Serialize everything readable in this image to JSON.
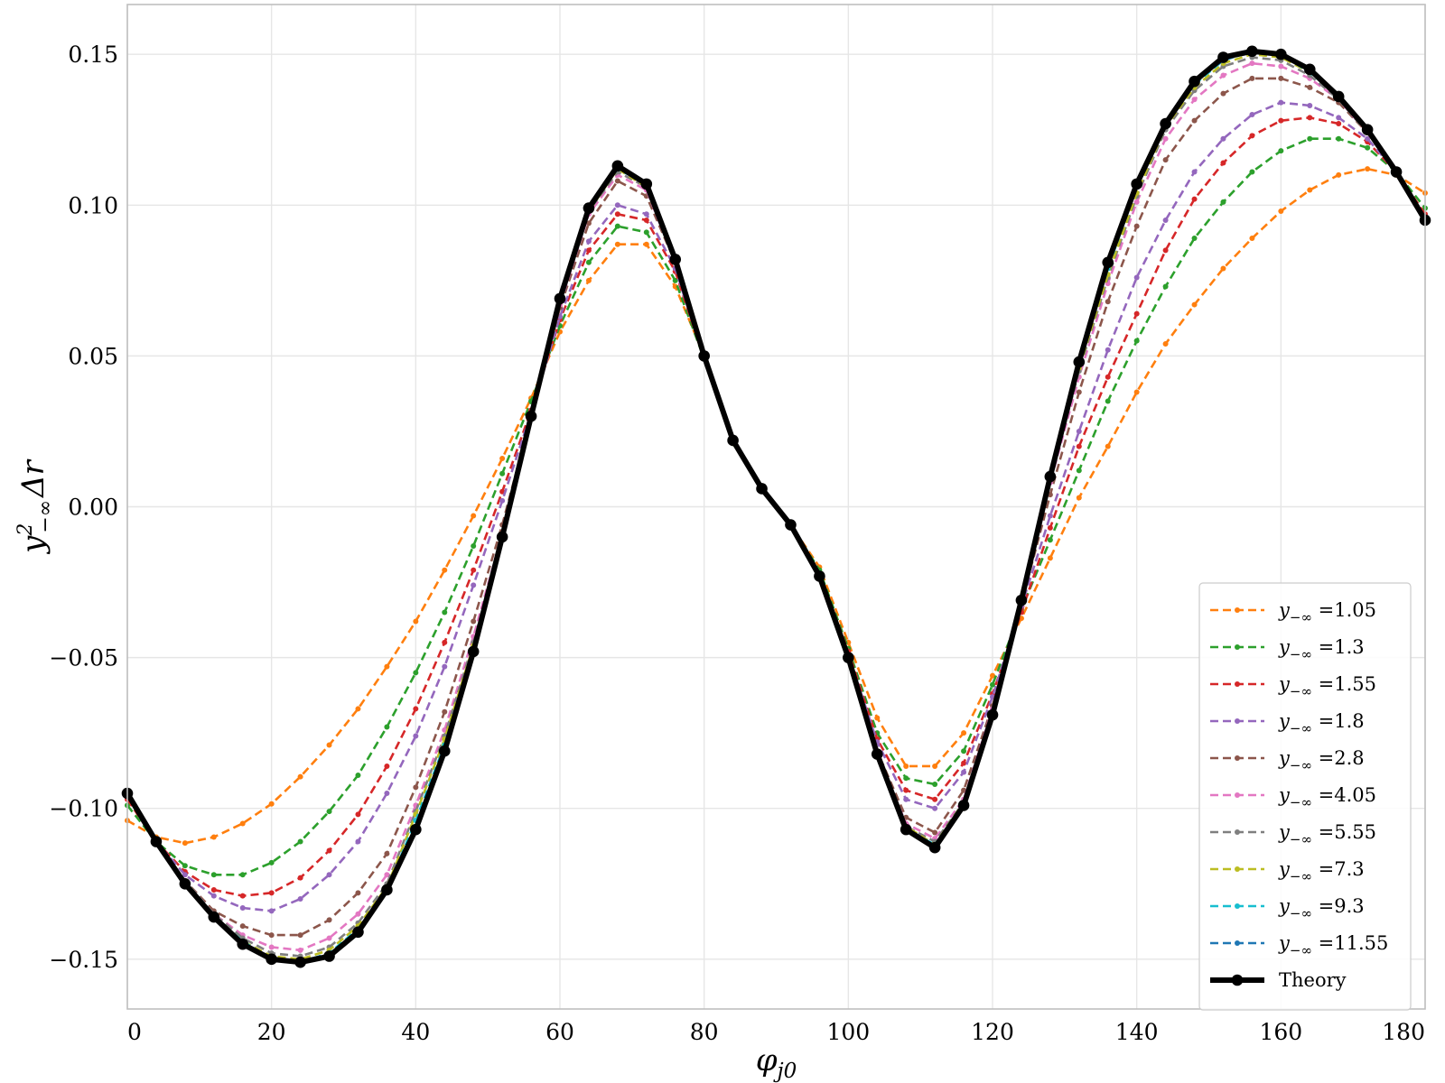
{
  "chart_data": {
    "type": "line",
    "xlabel": "φj0",
    "ylabel": "y²−∞Δr",
    "xlim": [
      0,
      180
    ],
    "ylim": [
      -0.1665,
      0.1665
    ],
    "xticks": [
      0,
      20,
      40,
      60,
      80,
      100,
      120,
      140,
      160,
      180
    ],
    "xtick_labels": [
      "0",
      "20",
      "40",
      "60",
      "80",
      "100",
      "120",
      "140",
      "160",
      "180"
    ],
    "yticks": [
      -0.15,
      -0.1,
      -0.05,
      0.0,
      0.05,
      0.1,
      0.15
    ],
    "ytick_labels": [
      "−0.15",
      "−0.10",
      "−0.05",
      "0.00",
      "0.05",
      "0.10",
      "0.15"
    ],
    "grid": true,
    "legend_position": "bottom-right",
    "x": [
      0,
      4,
      8,
      12,
      16,
      20,
      24,
      28,
      32,
      36,
      40,
      44,
      48,
      52,
      56,
      60,
      64,
      68,
      72,
      76,
      80,
      84,
      88,
      92,
      96,
      100,
      104,
      108,
      112,
      116,
      120,
      124,
      128,
      132,
      136,
      140,
      144,
      148,
      152,
      156,
      160,
      164,
      168,
      172,
      176,
      180
    ],
    "series": [
      {
        "name": "y−∞ =1.05",
        "legend_prefix": "y",
        "legend_sub": "−∞",
        "legend_value": " =1.05",
        "color": "#ff7f0e",
        "values": [
          -0.104,
          -0.1095,
          -0.1115,
          -0.1095,
          -0.105,
          -0.0985,
          -0.0895,
          -0.079,
          -0.067,
          -0.053,
          -0.038,
          -0.021,
          -0.003,
          0.016,
          0.036,
          0.058,
          0.075,
          0.087,
          0.087,
          0.073,
          0.05,
          0.021,
          0.006,
          -0.006,
          -0.02,
          -0.045,
          -0.07,
          -0.086,
          -0.086,
          -0.075,
          -0.056,
          -0.037,
          -0.017,
          0.003,
          0.02,
          0.038,
          0.054,
          0.067,
          0.079,
          0.089,
          0.098,
          0.105,
          0.11,
          0.112,
          0.11,
          0.104
        ]
      },
      {
        "name": "y−∞ =1.3",
        "legend_prefix": "y",
        "legend_sub": "−∞",
        "legend_value": " =1.3",
        "color": "#2ca02c",
        "values": [
          -0.099,
          -0.111,
          -0.119,
          -0.122,
          -0.122,
          -0.118,
          -0.111,
          -0.101,
          -0.089,
          -0.073,
          -0.055,
          -0.035,
          -0.013,
          0.011,
          0.035,
          0.06,
          0.081,
          0.093,
          0.091,
          0.075,
          0.049,
          0.021,
          0.006,
          -0.006,
          -0.021,
          -0.047,
          -0.075,
          -0.09,
          -0.092,
          -0.081,
          -0.059,
          -0.034,
          -0.011,
          0.012,
          0.035,
          0.055,
          0.073,
          0.089,
          0.101,
          0.111,
          0.118,
          0.122,
          0.122,
          0.119,
          0.111,
          0.099
        ]
      },
      {
        "name": "y−∞ =1.55",
        "legend_prefix": "y",
        "legend_sub": "−∞",
        "legend_value": " =1.55",
        "color": "#d62728",
        "values": [
          -0.097,
          -0.111,
          -0.121,
          -0.127,
          -0.129,
          -0.128,
          -0.123,
          -0.114,
          -0.102,
          -0.086,
          -0.067,
          -0.045,
          -0.021,
          0.005,
          0.032,
          0.062,
          0.085,
          0.097,
          0.095,
          0.078,
          0.049,
          0.022,
          0.006,
          -0.006,
          -0.022,
          -0.048,
          -0.077,
          -0.094,
          -0.097,
          -0.085,
          -0.062,
          -0.035,
          -0.007,
          0.02,
          0.043,
          0.064,
          0.085,
          0.102,
          0.114,
          0.123,
          0.128,
          0.129,
          0.127,
          0.121,
          0.111,
          0.097
        ]
      },
      {
        "name": "y−∞ =1.8",
        "legend_prefix": "y",
        "legend_sub": "−∞",
        "legend_value": " =1.8",
        "color": "#9467bd",
        "values": [
          -0.096,
          -0.111,
          -0.122,
          -0.129,
          -0.133,
          -0.134,
          -0.13,
          -0.122,
          -0.111,
          -0.095,
          -0.076,
          -0.053,
          -0.026,
          0.002,
          0.031,
          0.063,
          0.088,
          0.1,
          0.097,
          0.079,
          0.049,
          0.022,
          0.006,
          -0.006,
          -0.022,
          -0.049,
          -0.078,
          -0.097,
          -0.1,
          -0.088,
          -0.063,
          -0.033,
          -0.003,
          0.025,
          0.052,
          0.076,
          0.095,
          0.111,
          0.122,
          0.13,
          0.134,
          0.133,
          0.129,
          0.122,
          0.111,
          0.096
        ]
      },
      {
        "name": "y−∞ =2.8",
        "legend_prefix": "y",
        "legend_sub": "−∞",
        "legend_value": " =2.8",
        "color": "#8c564b",
        "values": [
          -0.095,
          -0.111,
          -0.124,
          -0.134,
          -0.139,
          -0.142,
          -0.142,
          -0.137,
          -0.128,
          -0.115,
          -0.093,
          -0.068,
          -0.038,
          -0.006,
          0.03,
          0.066,
          0.094,
          0.108,
          0.103,
          0.081,
          0.05,
          0.022,
          0.006,
          -0.006,
          -0.022,
          -0.05,
          -0.081,
          -0.103,
          -0.108,
          -0.094,
          -0.066,
          -0.032,
          0.004,
          0.038,
          0.068,
          0.093,
          0.115,
          0.128,
          0.137,
          0.142,
          0.142,
          0.139,
          0.134,
          0.124,
          0.111,
          0.095
        ]
      },
      {
        "name": "y−∞ =4.05",
        "legend_prefix": "y",
        "legend_sub": "−∞",
        "legend_value": " =4.05",
        "color": "#e377c2",
        "values": [
          -0.095,
          -0.111,
          -0.124,
          -0.135,
          -0.142,
          -0.146,
          -0.147,
          -0.143,
          -0.135,
          -0.122,
          -0.099,
          -0.074,
          -0.043,
          -0.009,
          0.03,
          0.067,
          0.097,
          0.11,
          0.105,
          0.081,
          0.05,
          0.022,
          0.006,
          -0.006,
          -0.022,
          -0.05,
          -0.082,
          -0.105,
          -0.11,
          -0.097,
          -0.067,
          -0.03,
          0.008,
          0.043,
          0.074,
          0.101,
          0.122,
          0.135,
          0.143,
          0.147,
          0.146,
          0.142,
          0.135,
          0.124,
          0.111,
          0.095
        ]
      },
      {
        "name": "y−∞ =5.55",
        "legend_prefix": "y",
        "legend_sub": "−∞",
        "legend_value": " =5.55",
        "color": "#7f7f7f",
        "values": [
          -0.095,
          -0.111,
          -0.124,
          -0.135,
          -0.143,
          -0.148,
          -0.149,
          -0.146,
          -0.138,
          -0.125,
          -0.101,
          -0.076,
          -0.045,
          -0.01,
          0.03,
          0.068,
          0.098,
          0.111,
          0.106,
          0.082,
          0.05,
          0.022,
          0.006,
          -0.006,
          -0.022,
          -0.05,
          -0.082,
          -0.106,
          -0.111,
          -0.098,
          -0.068,
          -0.03,
          0.009,
          0.045,
          0.076,
          0.103,
          0.125,
          0.138,
          0.146,
          0.149,
          0.148,
          0.143,
          0.135,
          0.124,
          0.111,
          0.095
        ]
      },
      {
        "name": "y−∞ =7.3",
        "legend_prefix": "y",
        "legend_sub": "−∞",
        "legend_value": " =7.3",
        "color": "#bcbd22",
        "values": [
          -0.095,
          -0.111,
          -0.124,
          -0.136,
          -0.144,
          -0.149,
          -0.15,
          -0.147,
          -0.139,
          -0.126,
          -0.102,
          -0.077,
          -0.046,
          -0.01,
          0.03,
          0.068,
          0.098,
          0.112,
          0.106,
          0.082,
          0.05,
          0.022,
          0.006,
          -0.006,
          -0.022,
          -0.05,
          -0.082,
          -0.106,
          -0.112,
          -0.098,
          -0.068,
          -0.03,
          0.009,
          0.046,
          0.077,
          0.104,
          0.126,
          0.139,
          0.147,
          0.15,
          0.149,
          0.144,
          0.136,
          0.124,
          0.111,
          0.095
        ]
      },
      {
        "name": "y−∞ =9.3",
        "legend_prefix": "y",
        "legend_sub": "−∞",
        "legend_value": " =9.3",
        "color": "#17becf",
        "values": [
          -0.095,
          -0.111,
          -0.125,
          -0.136,
          -0.144,
          -0.15,
          -0.151,
          -0.148,
          -0.14,
          -0.127,
          -0.104,
          -0.079,
          -0.047,
          -0.01,
          0.03,
          0.069,
          0.099,
          0.112,
          0.107,
          0.082,
          0.05,
          0.022,
          0.006,
          -0.006,
          -0.022,
          -0.05,
          -0.082,
          -0.107,
          -0.112,
          -0.099,
          -0.069,
          -0.03,
          0.01,
          0.047,
          0.079,
          0.106,
          0.127,
          0.14,
          0.148,
          0.151,
          0.15,
          0.144,
          0.136,
          0.125,
          0.111,
          0.095
        ]
      },
      {
        "name": "y−∞ =11.55",
        "legend_prefix": "y",
        "legend_sub": "−∞",
        "legend_value": " =11.55",
        "color": "#1f77b4",
        "values": [
          -0.095,
          -0.111,
          -0.125,
          -0.136,
          -0.145,
          -0.15,
          -0.151,
          -0.148,
          -0.141,
          -0.127,
          -0.106,
          -0.08,
          -0.048,
          -0.01,
          0.03,
          0.069,
          0.099,
          0.113,
          0.107,
          0.082,
          0.05,
          0.022,
          0.006,
          -0.006,
          -0.022,
          -0.05,
          -0.082,
          -0.107,
          -0.113,
          -0.099,
          -0.069,
          -0.031,
          0.01,
          0.048,
          0.081,
          0.107,
          0.127,
          0.141,
          0.148,
          0.151,
          0.15,
          0.145,
          0.136,
          0.125,
          0.111,
          0.095
        ]
      },
      {
        "name": "Theory",
        "legend_prefix": "Theory",
        "legend_sub": "",
        "legend_value": "",
        "color": "#000000",
        "bold": true,
        "values": [
          -0.095,
          -0.111,
          -0.125,
          -0.136,
          -0.145,
          -0.15,
          -0.151,
          -0.149,
          -0.141,
          -0.127,
          -0.107,
          -0.081,
          -0.048,
          -0.01,
          0.03,
          0.069,
          0.099,
          0.113,
          0.107,
          0.082,
          0.05,
          0.022,
          0.006,
          -0.006,
          -0.023,
          -0.05,
          -0.082,
          -0.107,
          -0.113,
          -0.099,
          -0.069,
          -0.031,
          0.01,
          0.048,
          0.081,
          0.107,
          0.127,
          0.141,
          0.149,
          0.151,
          0.15,
          0.145,
          0.136,
          0.125,
          0.111,
          0.095
        ]
      }
    ]
  }
}
